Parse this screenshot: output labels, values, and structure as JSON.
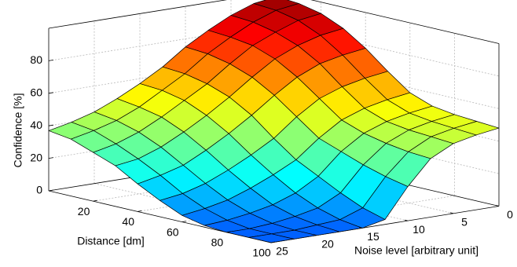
{
  "chart_data": {
    "type": "surface",
    "title": "",
    "xlabel": "Distance [dm]",
    "ylabel": "Noise level [arbitrary unit]",
    "zlabel": "Confidence [%]",
    "xlim": [
      0,
      100
    ],
    "ylim": [
      0,
      25
    ],
    "zlim": [
      0,
      100
    ],
    "x_ticks": [
      "20",
      "40",
      "60",
      "80",
      "100"
    ],
    "y_ticks": [
      "0",
      "5",
      "10",
      "15",
      "20",
      "25"
    ],
    "z_ticks": [
      "0",
      "20",
      "40",
      "60",
      "80"
    ],
    "grid": true,
    "colormap": "jet",
    "x": [
      0,
      10,
      20,
      30,
      40,
      50,
      60,
      70,
      80,
      90,
      100
    ],
    "y": [
      0,
      2.5,
      5,
      7.5,
      10,
      12.5,
      15,
      17.5,
      20,
      22.5,
      25
    ],
    "z_rows": [
      [
        97,
        96,
        93,
        87,
        78,
        67,
        57,
        52,
        50,
        49,
        48
      ],
      [
        95,
        94,
        91,
        85,
        76,
        65,
        55,
        50,
        48,
        47,
        46
      ],
      [
        90,
        89,
        86,
        81,
        73,
        62,
        52,
        47,
        45,
        44,
        43
      ],
      [
        83,
        82,
        80,
        75,
        67,
        57,
        47,
        42,
        39,
        37,
        36
      ],
      [
        75,
        74,
        71,
        66,
        58,
        48,
        38,
        33,
        28,
        24,
        21
      ],
      [
        65,
        64,
        61,
        56,
        48,
        37,
        27,
        20,
        13,
        7,
        3
      ],
      [
        57,
        56,
        53,
        47,
        39,
        29,
        20,
        12,
        6,
        2,
        0
      ],
      [
        50,
        48,
        45,
        39,
        31,
        22,
        14,
        7,
        3,
        1,
        0
      ],
      [
        44,
        42,
        38,
        32,
        24,
        16,
        9,
        4,
        1,
        0,
        0
      ],
      [
        40,
        38,
        33,
        27,
        20,
        12,
        6,
        2,
        0,
        0,
        0
      ],
      [
        37,
        35,
        30,
        25,
        17,
        10,
        4,
        1,
        0,
        0,
        0
      ]
    ]
  }
}
